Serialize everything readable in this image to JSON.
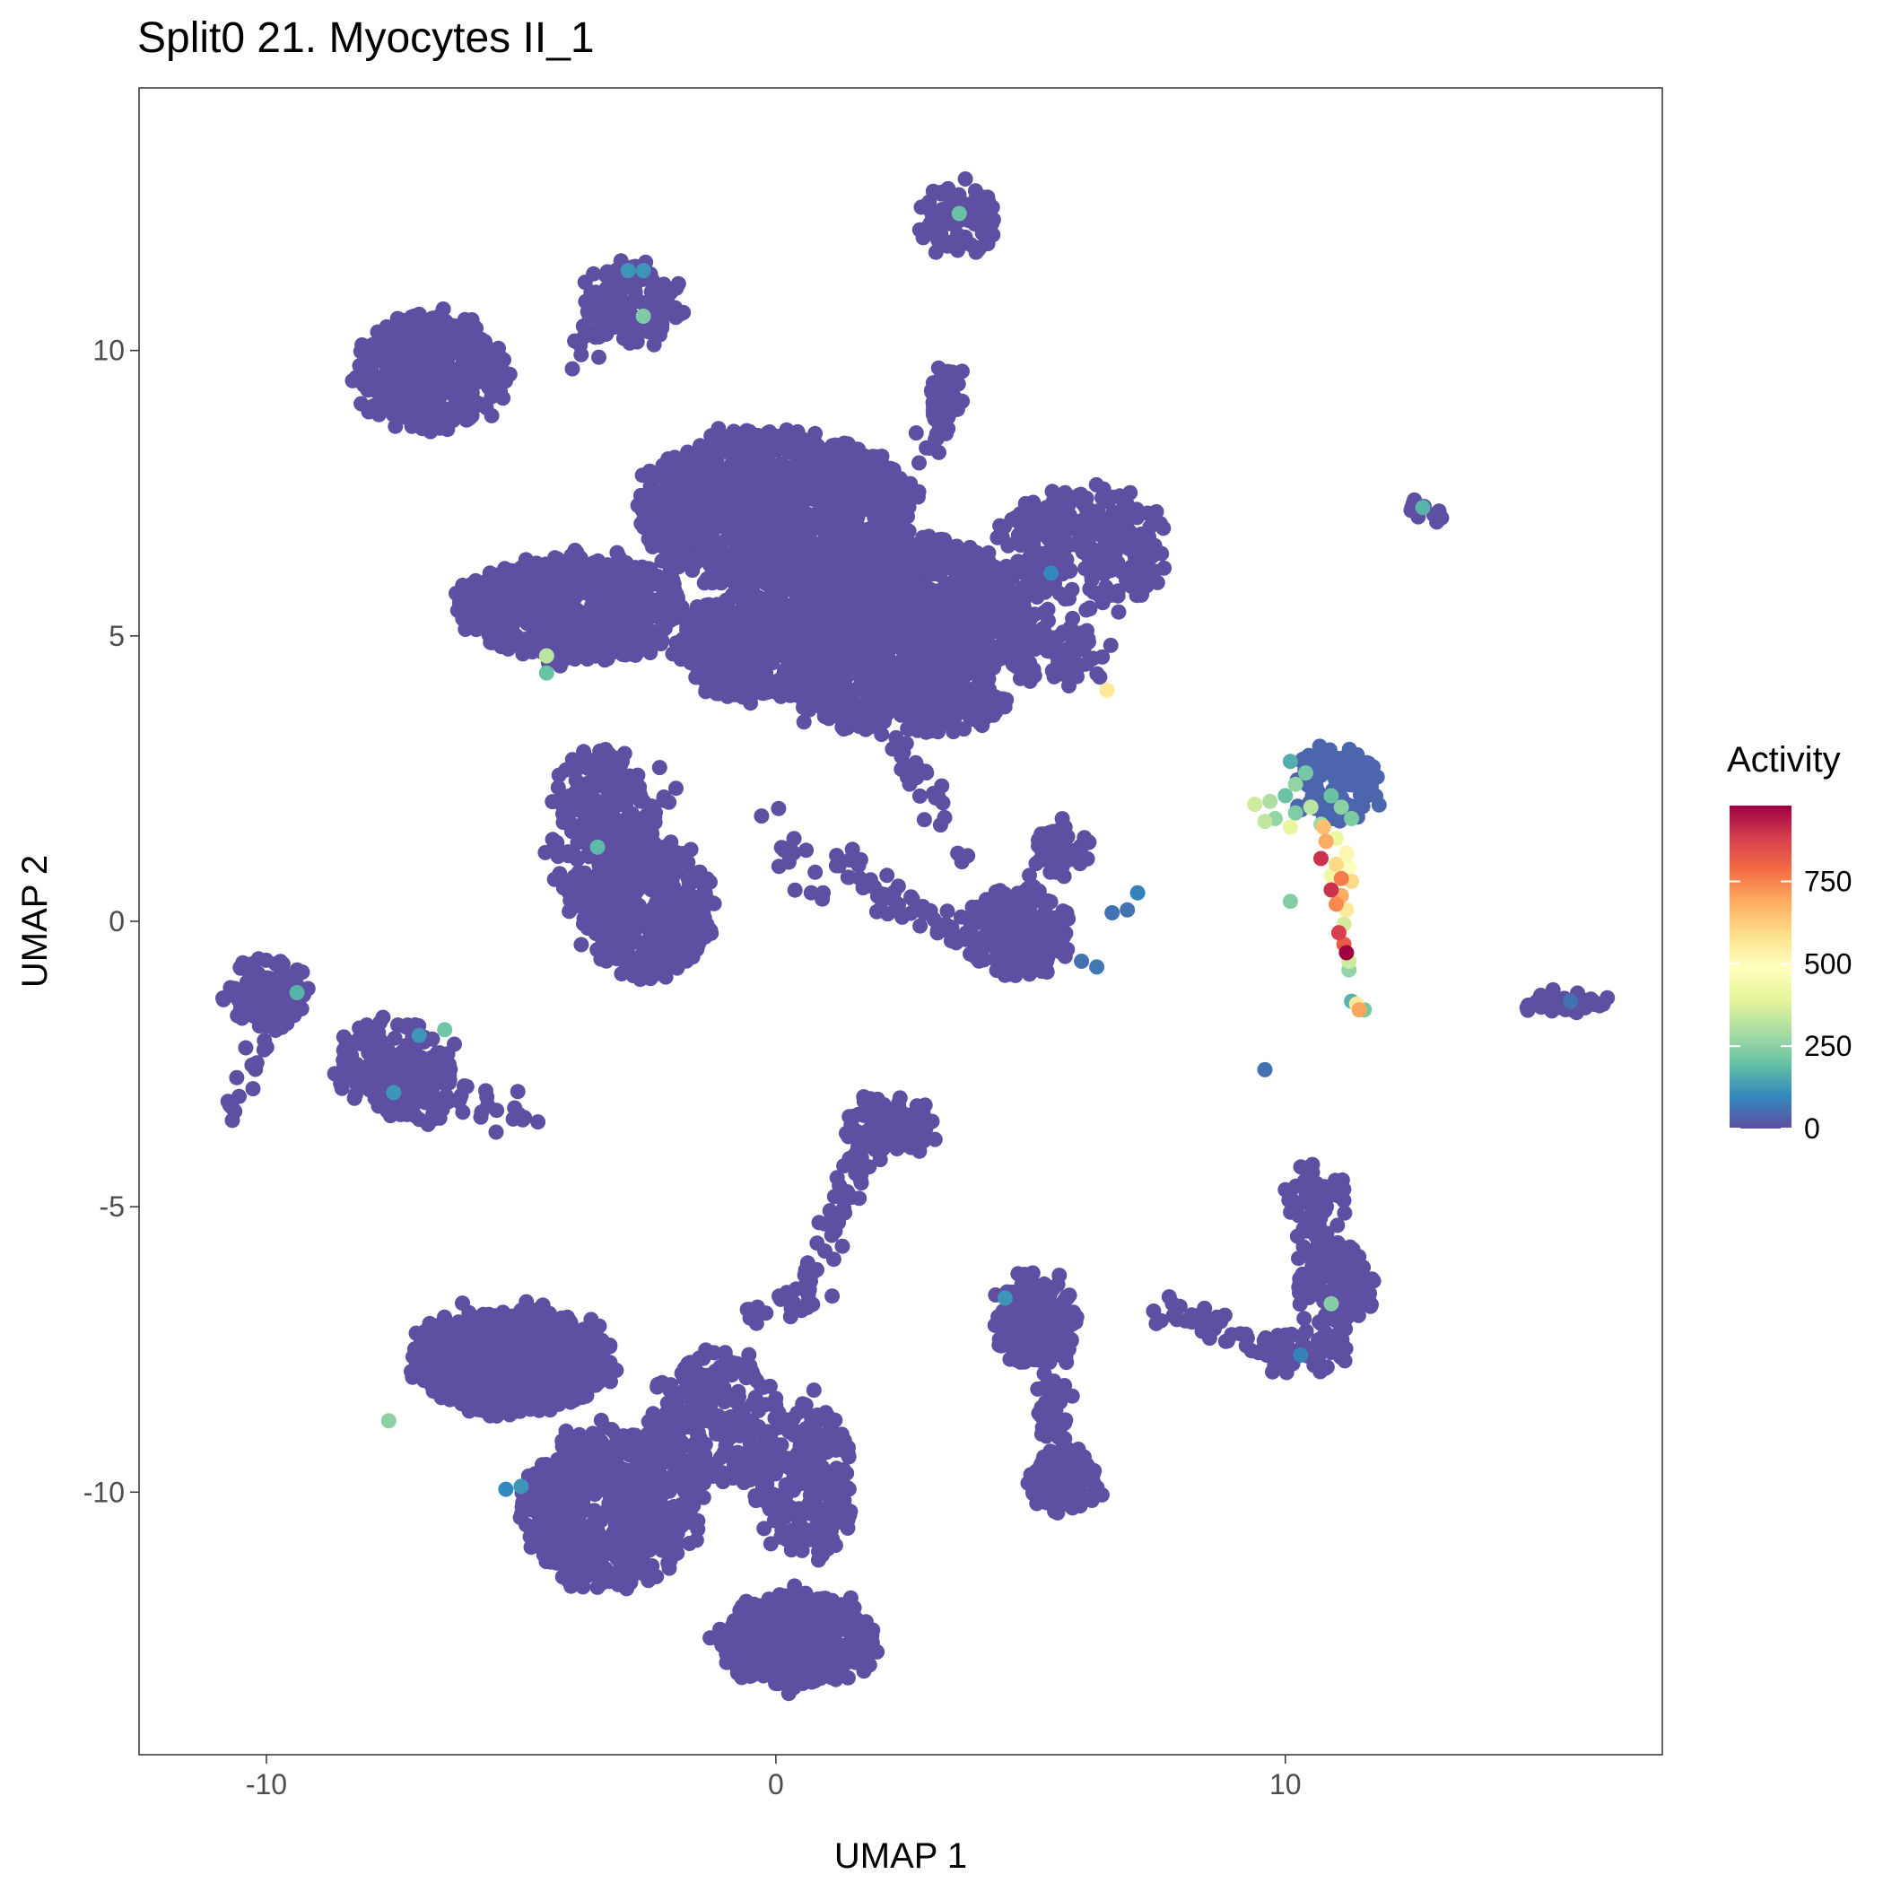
{
  "chart_data": {
    "type": "scatter",
    "title": "Split0 21. Myocytes II_1",
    "xlabel": "UMAP 1",
    "ylabel": "UMAP 2",
    "xlim": [
      -12.5,
      17.4
    ],
    "ylim": [
      -14.6,
      14.6
    ],
    "x_ticks": [
      -10,
      0,
      10
    ],
    "y_ticks": [
      -10,
      -5,
      0,
      5,
      10
    ],
    "x_tick_labels": [
      "-10",
      "0",
      "10"
    ],
    "y_tick_labels": [
      "-10",
      "-5",
      "0",
      "5",
      "10"
    ],
    "grid": false,
    "color_scale": {
      "title": "Activity",
      "min": 0,
      "max": 980,
      "ticks": [
        0,
        250,
        500,
        750
      ],
      "tick_labels": [
        "0",
        "250",
        "500",
        "750"
      ],
      "colors": [
        "#5e4fa2",
        "#3288bd",
        "#66c2a5",
        "#abdda4",
        "#e6f598",
        "#ffffbf",
        "#fee08b",
        "#fdae61",
        "#f46d43",
        "#d53e4f",
        "#9e0142"
      ],
      "legend_position": "right"
    },
    "clusters": [
      {
        "cx": 3.6,
        "cy": 12.3,
        "rx": 0.75,
        "ry": 0.6,
        "n": 90,
        "value": 0
      },
      {
        "cx": -2.8,
        "cy": 10.8,
        "rx": 0.9,
        "ry": 0.7,
        "n": 140,
        "value": 0
      },
      {
        "cx": -6.8,
        "cy": 9.6,
        "rx": 1.5,
        "ry": 1.0,
        "n": 420,
        "value": 0
      },
      {
        "cx": 3.3,
        "cy": 9.1,
        "rx": 0.3,
        "ry": 0.7,
        "n": 45,
        "value": 0
      },
      {
        "cx": -4.0,
        "cy": 5.5,
        "rx": 2.2,
        "ry": 0.9,
        "n": 650,
        "value": 0
      },
      {
        "cx": 0.0,
        "cy": 7.2,
        "rx": 2.7,
        "ry": 1.4,
        "n": 1100,
        "value": 0
      },
      {
        "cx": 2.6,
        "cy": 5.4,
        "rx": 2.4,
        "ry": 1.3,
        "n": 1000,
        "value": 0
      },
      {
        "cx": -0.3,
        "cy": 4.8,
        "rx": 1.7,
        "ry": 0.9,
        "n": 500,
        "value": 0
      },
      {
        "cx": 2.5,
        "cy": 3.8,
        "rx": 2.0,
        "ry": 0.5,
        "n": 300,
        "value": 0
      },
      {
        "cx": 6.0,
        "cy": 6.5,
        "rx": 1.7,
        "ry": 1.1,
        "n": 280,
        "value": 0
      },
      {
        "cx": 5.5,
        "cy": 4.7,
        "rx": 1.0,
        "ry": 0.5,
        "n": 100,
        "value": 0
      },
      {
        "cx": -3.4,
        "cy": 1.5,
        "rx": 1.0,
        "ry": 1.6,
        "n": 280,
        "value": 0
      },
      {
        "cx": -2.5,
        "cy": 0.2,
        "rx": 1.3,
        "ry": 1.2,
        "n": 320,
        "value": 0
      },
      {
        "cx": 4.7,
        "cy": -0.2,
        "rx": 1.0,
        "ry": 0.7,
        "n": 200,
        "value": 0
      },
      {
        "cx": 5.6,
        "cy": 1.3,
        "rx": 0.5,
        "ry": 0.4,
        "n": 60,
        "value": 0
      },
      {
        "cx": -10.0,
        "cy": -1.3,
        "rx": 0.9,
        "ry": 0.6,
        "n": 110,
        "value": 0
      },
      {
        "cx": -7.5,
        "cy": -2.5,
        "rx": 1.2,
        "ry": 0.7,
        "n": 170,
        "value": 0
      },
      {
        "cx": -7.0,
        "cy": -3.0,
        "rx": 0.8,
        "ry": 0.5,
        "n": 80,
        "value": 0
      },
      {
        "cx": 2.2,
        "cy": -3.6,
        "rx": 0.9,
        "ry": 0.5,
        "n": 90,
        "value": 0
      },
      {
        "cx": -5.2,
        "cy": -7.7,
        "rx": 2.0,
        "ry": 0.9,
        "n": 550,
        "value": 0
      },
      {
        "cx": -3.3,
        "cy": -10.3,
        "rx": 1.7,
        "ry": 1.4,
        "n": 600,
        "value": 0
      },
      {
        "cx": -1.2,
        "cy": -8.8,
        "rx": 1.3,
        "ry": 1.3,
        "n": 280,
        "value": 0
      },
      {
        "cx": 0.6,
        "cy": -9.8,
        "rx": 0.9,
        "ry": 1.4,
        "n": 230,
        "value": 0
      },
      {
        "cx": 0.4,
        "cy": -12.6,
        "rx": 1.5,
        "ry": 0.8,
        "n": 450,
        "value": 0
      },
      {
        "cx": 5.1,
        "cy": -7.0,
        "rx": 0.8,
        "ry": 0.8,
        "n": 190,
        "value": 0
      },
      {
        "cx": 5.6,
        "cy": -9.8,
        "rx": 0.7,
        "ry": 0.6,
        "n": 130,
        "value": 0
      },
      {
        "cx": 5.4,
        "cy": -8.5,
        "rx": 0.3,
        "ry": 0.6,
        "n": 40,
        "value": 0
      },
      {
        "cx": 11.0,
        "cy": -6.4,
        "rx": 0.7,
        "ry": 0.8,
        "n": 130,
        "value": 0
      },
      {
        "cx": 10.3,
        "cy": -7.5,
        "rx": 0.9,
        "ry": 0.3,
        "n": 70,
        "value": 0
      },
      {
        "cx": 10.6,
        "cy": -5.1,
        "rx": 0.6,
        "ry": 0.8,
        "n": 80,
        "value": 0
      },
      {
        "cx": 12.7,
        "cy": 7.2,
        "rx": 0.25,
        "ry": 0.2,
        "n": 14,
        "value": 0
      },
      {
        "cx": 15.5,
        "cy": -1.45,
        "rx": 0.9,
        "ry": 0.12,
        "n": 35,
        "value": 0
      },
      {
        "cx": 11.0,
        "cy": 2.4,
        "rx": 0.8,
        "ry": 0.6,
        "n": 120,
        "value": 40
      }
    ],
    "paths": [
      {
        "from": [
          0.6,
          -6.6
        ],
        "to": [
          1.4,
          -4.6
        ],
        "n": 35,
        "value": 0
      },
      {
        "from": [
          1.4,
          -4.6
        ],
        "to": [
          2.2,
          -3.4
        ],
        "n": 25,
        "value": 0
      },
      {
        "from": [
          -0.8,
          -7.0
        ],
        "to": [
          0.6,
          -6.6
        ],
        "n": 20,
        "value": 0
      },
      {
        "from": [
          1.2,
          1.2
        ],
        "to": [
          2.6,
          0.2
        ],
        "n": 30,
        "value": 0
      },
      {
        "from": [
          2.6,
          0.2
        ],
        "to": [
          4.0,
          -0.4
        ],
        "n": 25,
        "value": 0
      },
      {
        "from": [
          2.4,
          3.0
        ],
        "to": [
          3.8,
          1.2
        ],
        "n": 30,
        "value": 0
      },
      {
        "from": [
          4.0,
          0.0
        ],
        "to": [
          5.6,
          1.3
        ],
        "n": 20,
        "value": 0
      },
      {
        "from": [
          -0.2,
          2.0
        ],
        "to": [
          0.8,
          0.4
        ],
        "n": 15,
        "value": 0
      },
      {
        "from": [
          -9.8,
          -1.6
        ],
        "to": [
          -10.8,
          -3.6
        ],
        "n": 20,
        "value": 0
      },
      {
        "from": [
          -6.5,
          -3.0
        ],
        "to": [
          -4.6,
          -3.4
        ],
        "n": 20,
        "value": 0
      },
      {
        "from": [
          7.4,
          -6.7
        ],
        "to": [
          9.4,
          -7.4
        ],
        "n": 30,
        "value": 0
      },
      {
        "from": [
          -2.0,
          2.5
        ],
        "to": [
          -2.6,
          1.6
        ],
        "n": 10,
        "value": 0
      },
      {
        "from": [
          2.6,
          7.6
        ],
        "to": [
          3.4,
          9.4
        ],
        "n": 15,
        "value": 0
      },
      {
        "from": [
          -4.0,
          10.0
        ],
        "to": [
          -3.2,
          10.4
        ],
        "n": 10,
        "value": 0
      }
    ],
    "points": [
      {
        "x": 3.6,
        "y": 12.4,
        "value": 200
      },
      {
        "x": -2.9,
        "y": 11.4,
        "value": 120
      },
      {
        "x": -2.6,
        "y": 11.4,
        "value": 120
      },
      {
        "x": -2.6,
        "y": 10.6,
        "value": 230
      },
      {
        "x": -6.8,
        "y": 9.8,
        "value": 0
      },
      {
        "x": -4.5,
        "y": 4.65,
        "value": 320
      },
      {
        "x": -4.5,
        "y": 4.35,
        "value": 200
      },
      {
        "x": 5.4,
        "y": 6.1,
        "value": 100
      },
      {
        "x": 6.5,
        "y": 4.05,
        "value": 560
      },
      {
        "x": -3.5,
        "y": 1.3,
        "value": 180
      },
      {
        "x": -9.4,
        "y": -1.25,
        "value": 170
      },
      {
        "x": -7.0,
        "y": -2.0,
        "value": 120
      },
      {
        "x": -6.5,
        "y": -1.9,
        "value": 210
      },
      {
        "x": -7.5,
        "y": -3.0,
        "value": 120
      },
      {
        "x": -7.6,
        "y": -8.75,
        "value": 250
      },
      {
        "x": -5.0,
        "y": -9.9,
        "value": 120
      },
      {
        "x": -5.3,
        "y": -9.95,
        "value": 100
      },
      {
        "x": 4.5,
        "y": -6.6,
        "value": 120
      },
      {
        "x": 10.9,
        "y": -6.7,
        "value": 240
      },
      {
        "x": 10.3,
        "y": -7.6,
        "value": 90
      },
      {
        "x": 12.7,
        "y": 7.25,
        "value": 170
      },
      {
        "x": 7.1,
        "y": 0.5,
        "value": 90
      },
      {
        "x": 6.9,
        "y": 0.2,
        "value": 60
      },
      {
        "x": 6.6,
        "y": 0.15,
        "value": 60
      },
      {
        "x": 6.3,
        "y": -0.8,
        "value": 70
      },
      {
        "x": 6.0,
        "y": -0.7,
        "value": 60
      },
      {
        "x": 15.6,
        "y": -1.4,
        "value": 60
      },
      {
        "x": 10.1,
        "y": 2.8,
        "value": 160
      },
      {
        "x": 10.4,
        "y": 2.6,
        "value": 220
      },
      {
        "x": 10.2,
        "y": 2.4,
        "value": 260
      },
      {
        "x": 10.0,
        "y": 2.2,
        "value": 200
      },
      {
        "x": 9.7,
        "y": 2.1,
        "value": 300
      },
      {
        "x": 9.4,
        "y": 2.05,
        "value": 350
      },
      {
        "x": 9.8,
        "y": 1.8,
        "value": 260
      },
      {
        "x": 10.2,
        "y": 1.9,
        "value": 230
      },
      {
        "x": 10.5,
        "y": 2.0,
        "value": 320
      },
      {
        "x": 10.7,
        "y": 1.7,
        "value": 280
      },
      {
        "x": 10.9,
        "y": 2.2,
        "value": 200
      },
      {
        "x": 11.1,
        "y": 2.0,
        "value": 250
      },
      {
        "x": 11.3,
        "y": 1.8,
        "value": 230
      },
      {
        "x": 9.6,
        "y": 1.75,
        "value": 330
      },
      {
        "x": 10.1,
        "y": 1.65,
        "value": 410
      },
      {
        "x": 10.8,
        "y": 1.4,
        "value": 690
      },
      {
        "x": 10.75,
        "y": 1.65,
        "value": 650
      },
      {
        "x": 11.0,
        "y": 1.45,
        "value": 420
      },
      {
        "x": 11.2,
        "y": 1.2,
        "value": 520
      },
      {
        "x": 10.7,
        "y": 1.1,
        "value": 900
      },
      {
        "x": 11.0,
        "y": 1.0,
        "value": 600
      },
      {
        "x": 11.25,
        "y": 0.95,
        "value": 480
      },
      {
        "x": 10.9,
        "y": 0.8,
        "value": 430
      },
      {
        "x": 11.1,
        "y": 0.75,
        "value": 760
      },
      {
        "x": 11.3,
        "y": 0.7,
        "value": 600
      },
      {
        "x": 10.9,
        "y": 0.55,
        "value": 900
      },
      {
        "x": 11.1,
        "y": 0.45,
        "value": 690
      },
      {
        "x": 10.1,
        "y": 0.35,
        "value": 240
      },
      {
        "x": 11.0,
        "y": 0.3,
        "value": 740
      },
      {
        "x": 11.2,
        "y": 0.2,
        "value": 560
      },
      {
        "x": 11.15,
        "y": -0.05,
        "value": 360
      },
      {
        "x": 11.05,
        "y": -0.2,
        "value": 880
      },
      {
        "x": 11.15,
        "y": -0.4,
        "value": 820
      },
      {
        "x": 11.2,
        "y": -0.55,
        "value": 980
      },
      {
        "x": 11.25,
        "y": -0.7,
        "value": 350
      },
      {
        "x": 11.25,
        "y": -0.85,
        "value": 260
      },
      {
        "x": 11.3,
        "y": -1.4,
        "value": 170
      },
      {
        "x": 11.4,
        "y": -1.45,
        "value": 560
      },
      {
        "x": 11.45,
        "y": -1.55,
        "value": 700
      },
      {
        "x": 11.55,
        "y": -1.55,
        "value": 220
      },
      {
        "x": 9.6,
        "y": -2.6,
        "value": 60
      }
    ]
  }
}
